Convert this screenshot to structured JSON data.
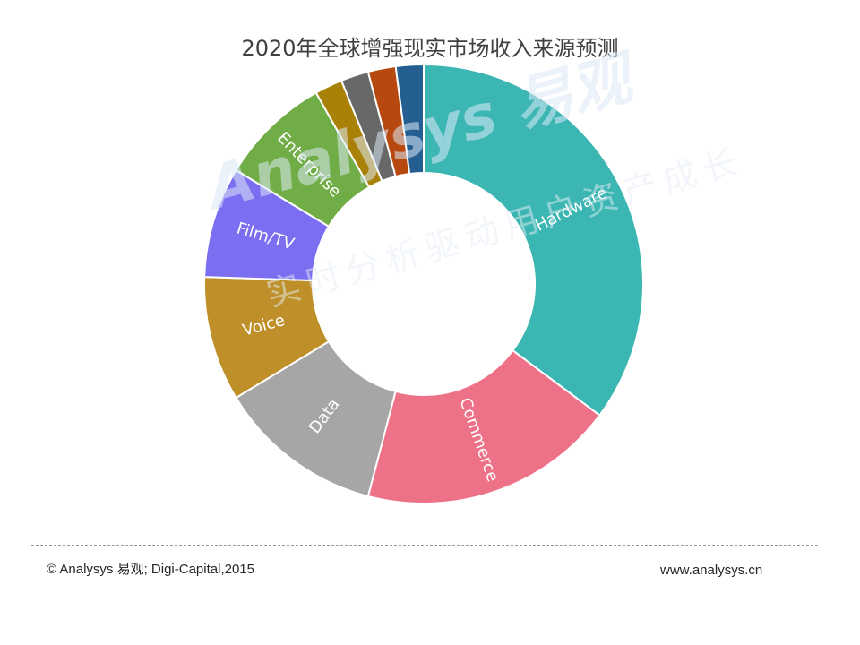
{
  "chart_data": {
    "type": "pie",
    "title": "2020年全球增强现实市场收入来源预测",
    "donut": true,
    "slices": [
      {
        "label": "Hardware",
        "value": 34.5,
        "color": "#3bb6b3"
      },
      {
        "label": "Commerce",
        "value": 18.5,
        "color": "#ee7287"
      },
      {
        "label": "Data",
        "value": 12,
        "color": "#a6a6a6"
      },
      {
        "label": "Voice",
        "value": 9,
        "color": "#bf9029"
      },
      {
        "label": "Film/TV",
        "value": 8,
        "color": "#7b6ef0"
      },
      {
        "label": "Enterprise",
        "value": 8,
        "color": "#71ad46"
      },
      {
        "label": "",
        "value": 2,
        "color": "#a88106"
      },
      {
        "label": "",
        "value": 2,
        "color": "#686868"
      },
      {
        "label": "",
        "value": 2,
        "color": "#b7480f"
      },
      {
        "label": "",
        "value": 2,
        "color": "#255e91"
      }
    ]
  },
  "watermark": {
    "logo": "Analysys 易观",
    "slogan": "实时分析驱动用户资产成长"
  },
  "footer": {
    "source": "© Analysys 易观; Digi-Capital,2015",
    "website": "www.analysys.cn"
  }
}
